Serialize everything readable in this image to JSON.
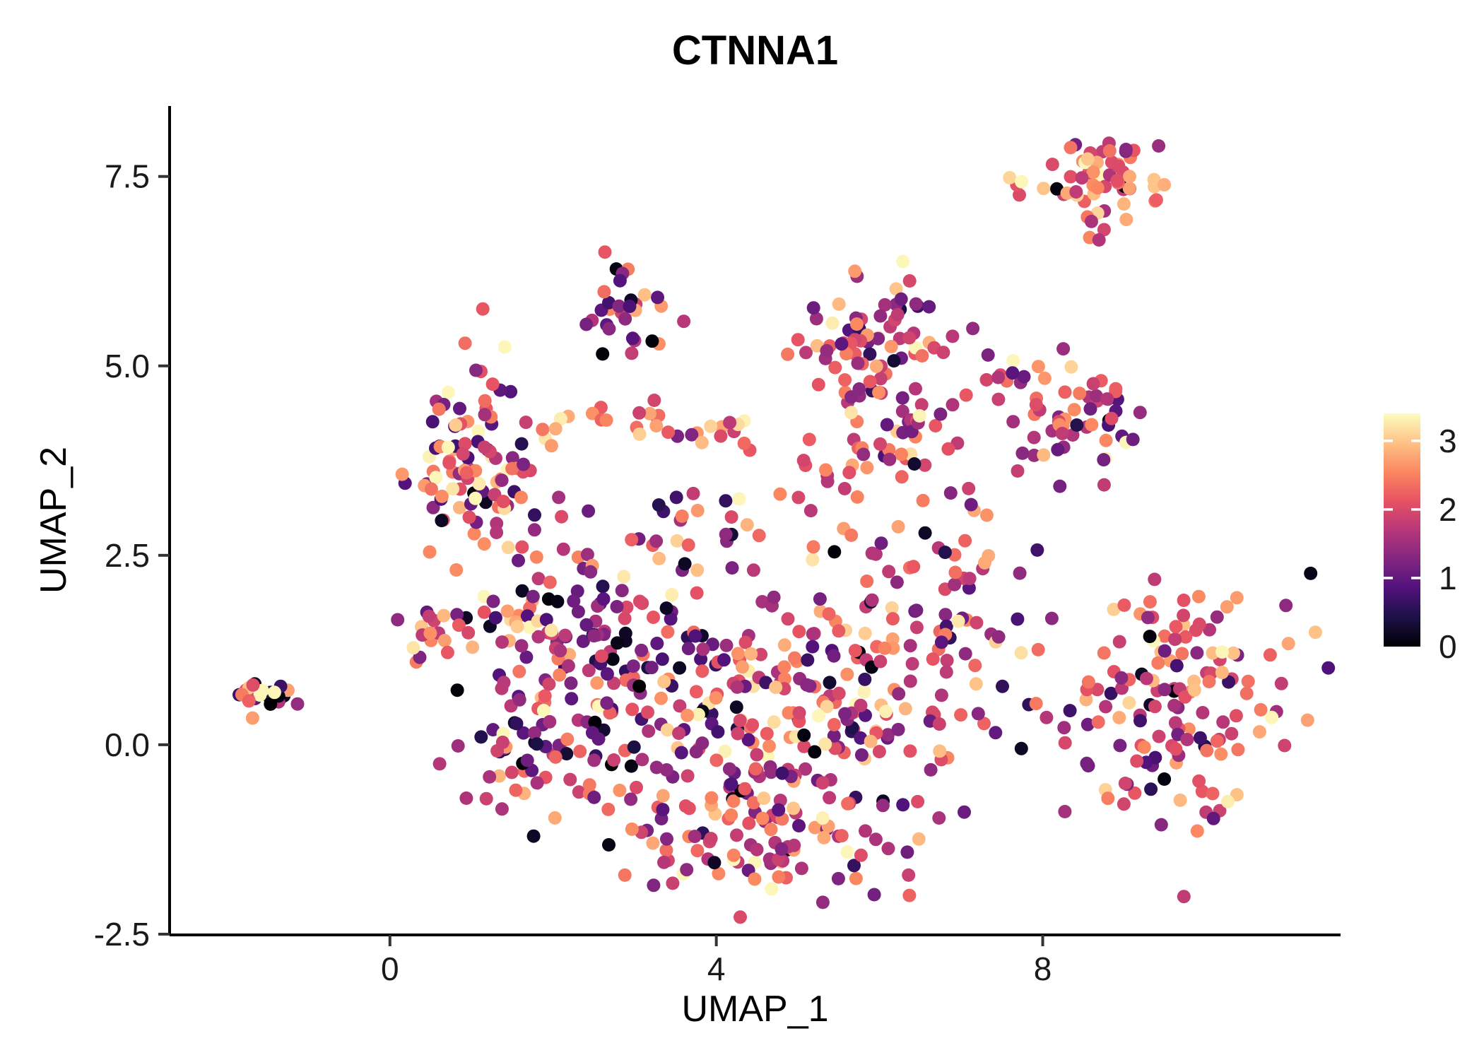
{
  "chart_data": {
    "type": "scatter",
    "title": "CTNNA1",
    "xlabel": "UMAP_1",
    "ylabel": "UMAP_2",
    "xlim": [
      -2.7,
      11.65
    ],
    "ylim": [
      -2.51,
      8.43
    ],
    "xticks": [
      0,
      4,
      8
    ],
    "xtick_labels": [
      "0",
      "4",
      "8"
    ],
    "yticks": [
      -2.5,
      0.0,
      2.5,
      5.0,
      7.5
    ],
    "ytick_labels": [
      "-2.5",
      "0.0",
      "2.5",
      "5.0",
      "7.5"
    ],
    "grid": false,
    "background": "#ffffff",
    "axis_color": "#000000",
    "tick_text_color": "#1a1a1a",
    "point_radius": 9.5,
    "seed": 42,
    "legend": {
      "type": "colorbar",
      "position": "right",
      "ticks": [
        0,
        1,
        2,
        3
      ],
      "tick_labels": [
        "0",
        "1",
        "2",
        "3"
      ],
      "domain": [
        0,
        3.4
      ],
      "colormap": "magma"
    },
    "colormap_stops": [
      {
        "t": 0.0,
        "c": "#000004"
      },
      {
        "t": 0.125,
        "c": "#1d1147"
      },
      {
        "t": 0.25,
        "c": "#51127c"
      },
      {
        "t": 0.375,
        "c": "#822681"
      },
      {
        "t": 0.5,
        "c": "#b73779"
      },
      {
        "t": 0.625,
        "c": "#e75263"
      },
      {
        "t": 0.75,
        "c": "#fb8861"
      },
      {
        "t": 0.875,
        "c": "#fec287"
      },
      {
        "t": 1.0,
        "c": "#fcfdbf"
      }
    ],
    "clusters": [
      {
        "name": "isolated-left",
        "cx": -1.55,
        "cy": 0.68,
        "sx": 0.2,
        "sy": 0.1,
        "n": 26,
        "vmean": 1.8,
        "vsd": 0.9,
        "v0frac": 0.1
      },
      {
        "name": "top-right",
        "cx": 8.62,
        "cy": 7.5,
        "sx": 0.4,
        "sy": 0.22,
        "n": 60,
        "vmean": 2.3,
        "vsd": 0.65,
        "v0frac": 0.02
      },
      {
        "name": "top-right-tail",
        "cx": 8.75,
        "cy": 6.85,
        "sx": 0.15,
        "sy": 0.18,
        "n": 6,
        "vmean": 2.2,
        "vsd": 0.6,
        "v0frac": 0.0
      },
      {
        "name": "top-mid",
        "cx": 2.88,
        "cy": 5.75,
        "sx": 0.25,
        "sy": 0.27,
        "n": 30,
        "vmean": 1.5,
        "vsd": 0.85,
        "v0frac": 0.06
      },
      {
        "name": "upper-right-a",
        "cx": 5.9,
        "cy": 5.3,
        "sx": 0.45,
        "sy": 0.45,
        "n": 70,
        "vmean": 1.9,
        "vsd": 0.7,
        "v0frac": 0.02
      },
      {
        "name": "upper-right-b",
        "cx": 6.1,
        "cy": 4.1,
        "sx": 0.5,
        "sy": 0.45,
        "n": 55,
        "vmean": 1.9,
        "vsd": 0.7,
        "v0frac": 0.02
      },
      {
        "name": "right-mid",
        "cx": 8.45,
        "cy": 4.35,
        "sx": 0.45,
        "sy": 0.4,
        "n": 55,
        "vmean": 1.9,
        "vsd": 0.7,
        "v0frac": 0.03
      },
      {
        "name": "left-upper",
        "cx": 1.05,
        "cy": 3.85,
        "sx": 0.42,
        "sy": 0.55,
        "n": 100,
        "vmean": 1.9,
        "vsd": 0.9,
        "v0frac": 0.05
      },
      {
        "name": "mid-band",
        "cx": 3.5,
        "cy": 4.25,
        "sx": 0.75,
        "sy": 0.18,
        "n": 30,
        "vmean": 2.3,
        "vsd": 0.55,
        "v0frac": 0.0
      },
      {
        "name": "central-a",
        "cx": 3.1,
        "cy": 0.9,
        "sx": 0.95,
        "sy": 0.85,
        "n": 150,
        "vmean": 1.6,
        "vsd": 0.85,
        "v0frac": 0.05
      },
      {
        "name": "central-b",
        "cx": 5.2,
        "cy": 0.35,
        "sx": 0.95,
        "sy": 0.85,
        "n": 190,
        "vmean": 1.85,
        "vsd": 0.75,
        "v0frac": 0.03
      },
      {
        "name": "central-bottom",
        "cx": 4.4,
        "cy": -1.25,
        "sx": 0.95,
        "sy": 0.4,
        "n": 80,
        "vmean": 1.9,
        "vsd": 0.7,
        "v0frac": 0.02
      },
      {
        "name": "central-ne-arm",
        "cx": 6.55,
        "cy": 1.9,
        "sx": 0.55,
        "sy": 0.5,
        "n": 55,
        "vmean": 1.9,
        "vsd": 0.8,
        "v0frac": 0.03
      },
      {
        "name": "central-w",
        "cx": 2.05,
        "cy": 1.5,
        "sx": 0.5,
        "sy": 0.55,
        "n": 55,
        "vmean": 1.7,
        "vsd": 0.9,
        "v0frac": 0.06
      },
      {
        "name": "central-sw",
        "cx": 1.65,
        "cy": -0.05,
        "sx": 0.4,
        "sy": 0.5,
        "n": 45,
        "vmean": 1.8,
        "vsd": 0.8,
        "v0frac": 0.04
      },
      {
        "name": "left-arm",
        "cx": 0.55,
        "cy": 1.45,
        "sx": 0.28,
        "sy": 0.2,
        "n": 22,
        "vmean": 1.9,
        "vsd": 0.8,
        "v0frac": 0.04
      },
      {
        "name": "mid-sparse",
        "cx": 4.3,
        "cy": 2.9,
        "sx": 0.9,
        "sy": 0.5,
        "n": 30,
        "vmean": 1.6,
        "vsd": 0.9,
        "v0frac": 0.06
      },
      {
        "name": "bottom-right",
        "cx": 9.6,
        "cy": 0.55,
        "sx": 0.7,
        "sy": 0.8,
        "n": 150,
        "vmean": 2.0,
        "vsd": 0.75,
        "v0frac": 0.03
      },
      {
        "name": "connector-right",
        "cx": 7.3,
        "cy": 3.0,
        "sx": 0.5,
        "sy": 0.8,
        "n": 12,
        "vmean": 1.8,
        "vsd": 0.8,
        "v0frac": 0.0
      },
      {
        "name": "connector-upper",
        "cx": 7.4,
        "cy": 5.0,
        "sx": 0.4,
        "sy": 0.5,
        "n": 8,
        "vmean": 1.9,
        "vsd": 0.7,
        "v0frac": 0.0
      }
    ]
  }
}
